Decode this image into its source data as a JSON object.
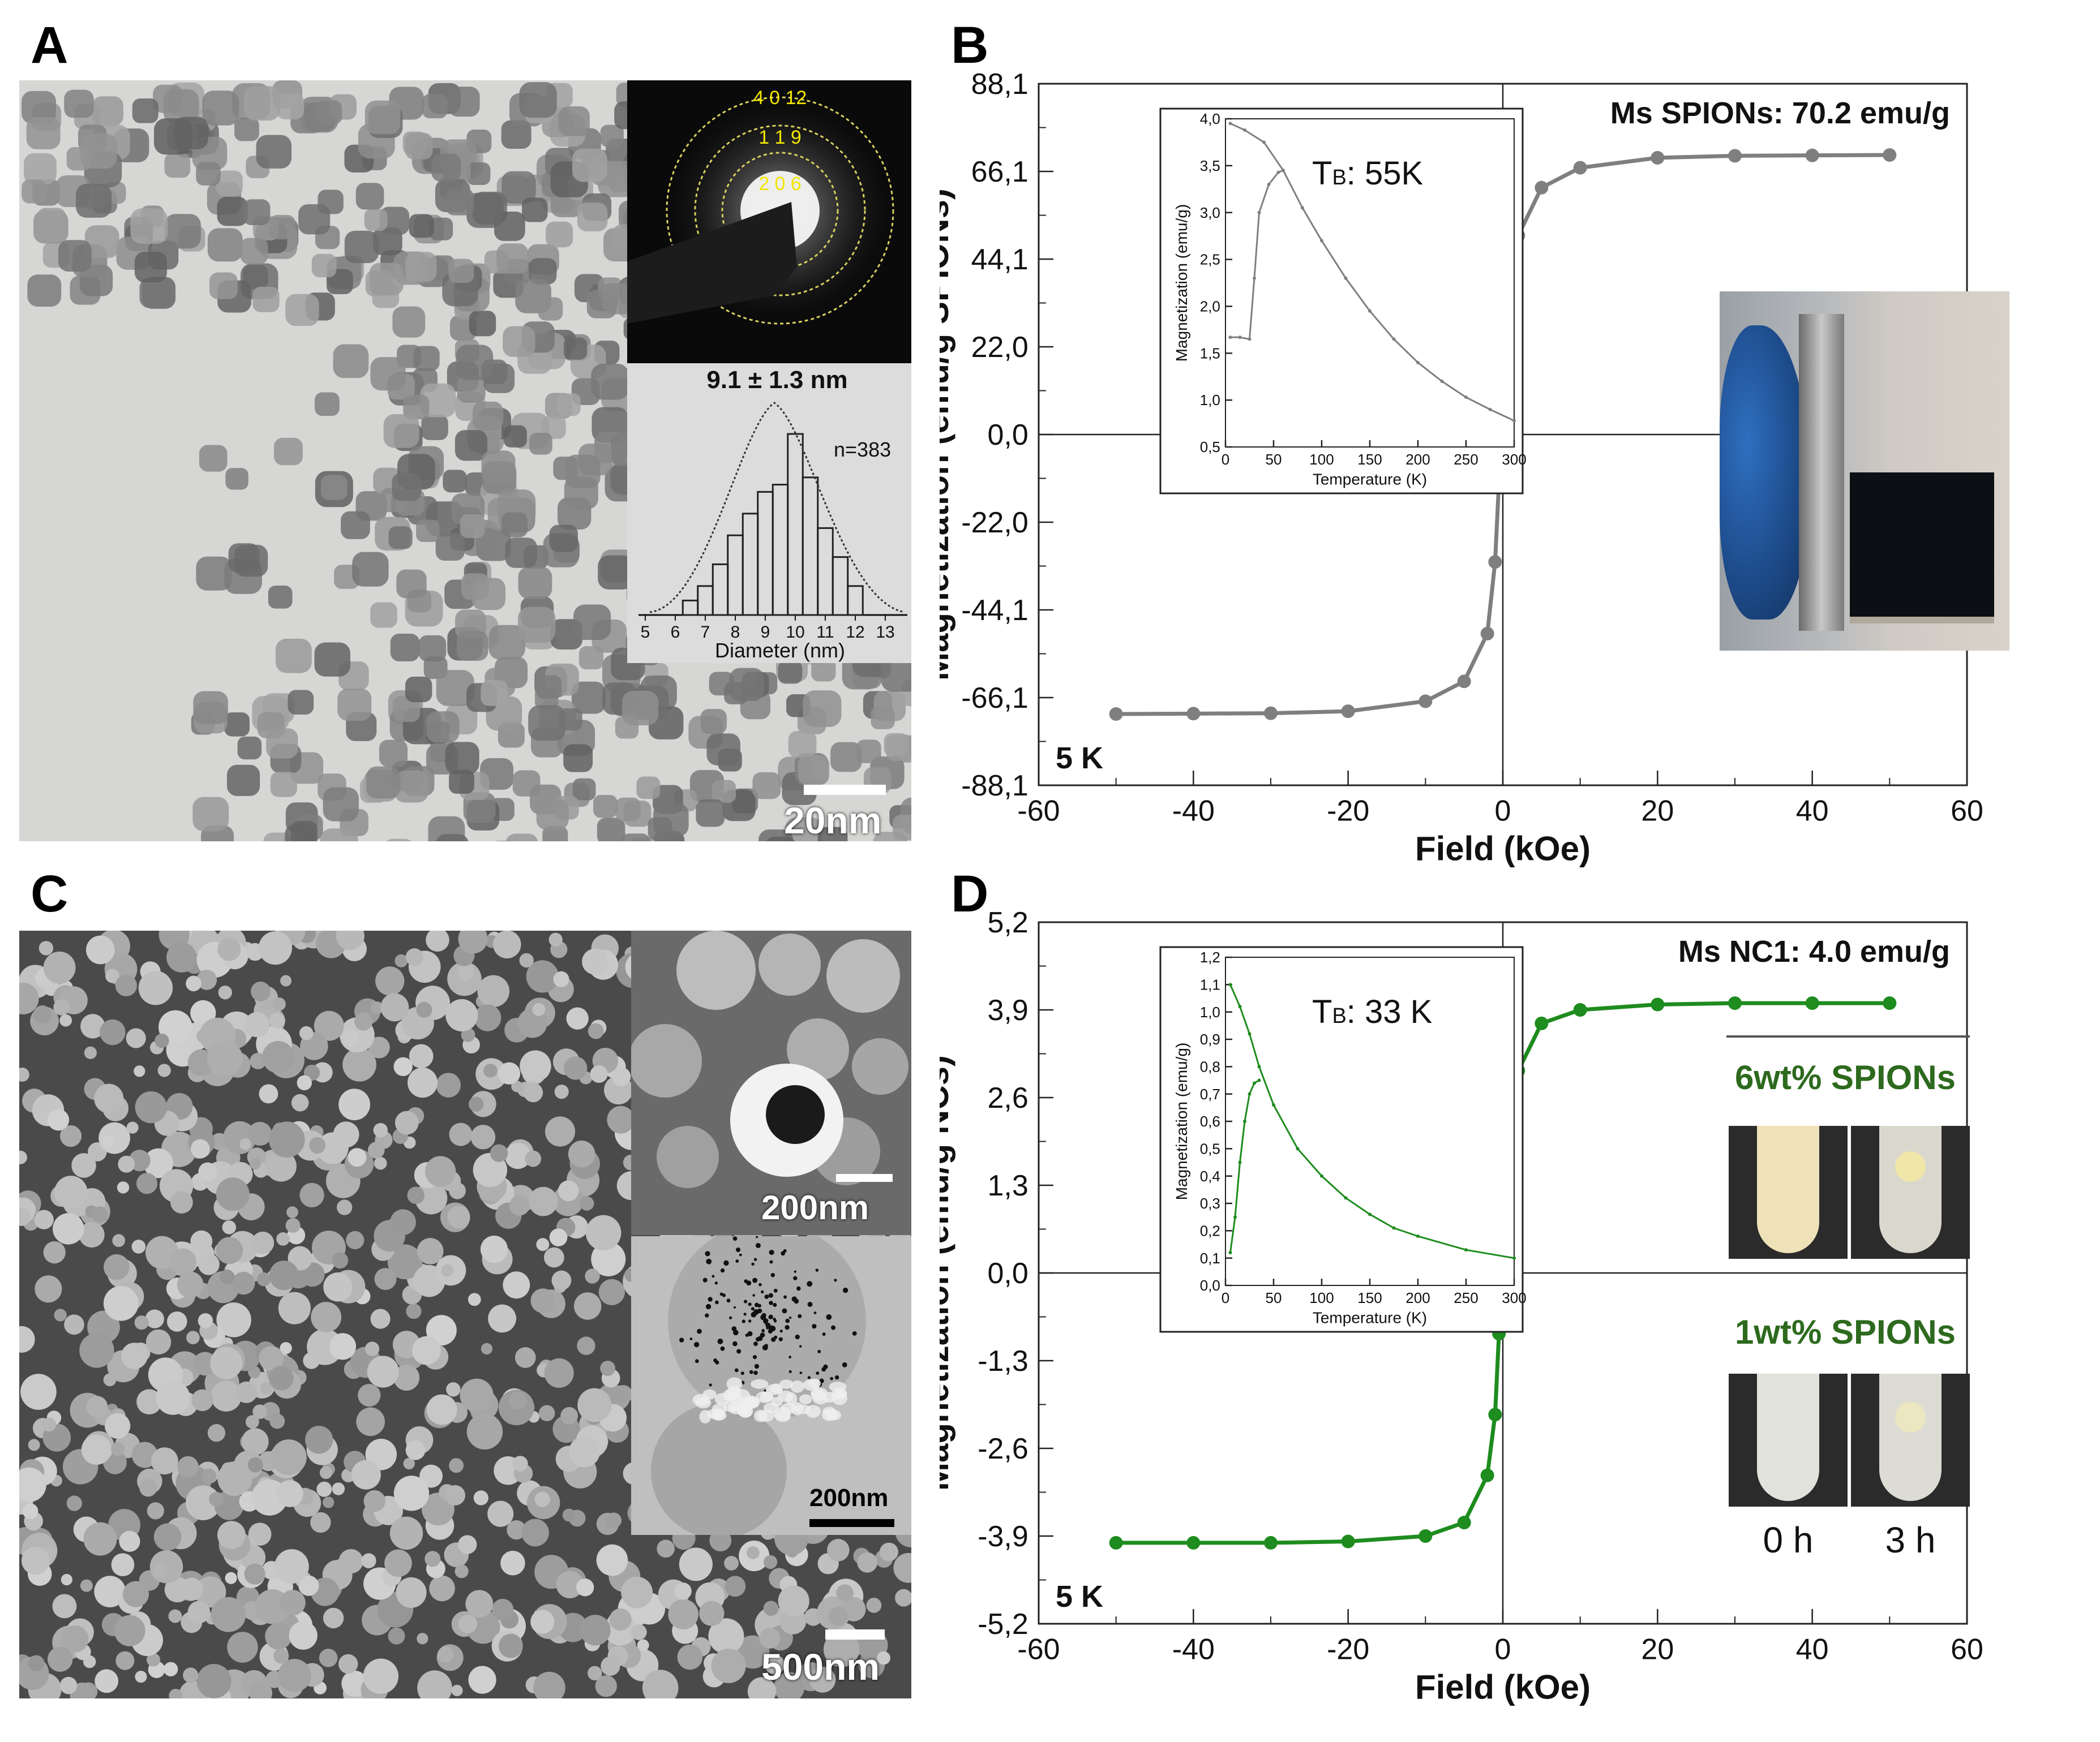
{
  "panels": {
    "a": {
      "letter": "A",
      "diffraction_rings": [
        "4 0 12",
        "1 1 9",
        "2 0 6"
      ],
      "histogram_title": "9.1 ± 1.3 nm",
      "histogram_n": "n=383",
      "histogram_xlabel": "Diameter (nm)",
      "histogram_ticks": [
        "5",
        "6",
        "7",
        "8",
        "9",
        "10",
        "11",
        "12",
        "13"
      ],
      "scalebar": "20nm"
    },
    "b": {
      "letter": "B"
    },
    "c": {
      "letter": "C",
      "scalebar_main": "500nm",
      "scalebar_inset_top": "200nm",
      "scalebar_inset_bottom": "200nm"
    },
    "d": {
      "letter": "D",
      "photo_top_label": "6wt% SPIONs",
      "photo_bottom_label": "1wt% SPIONs",
      "time_0": "0 h",
      "time_3": "3 h"
    }
  },
  "colors": {
    "spion_curve": "#7f7f7f",
    "nc_curve": "#1e8c1e",
    "nc_text": "#2d6a1e",
    "diffraction_label": "#f2e600"
  },
  "chart_data": [
    {
      "id": "b-main",
      "type": "line",
      "title": "",
      "xlabel": "Field (kOe)",
      "ylabel": "Magnetization (emu/g SPIONs)",
      "xlim": [
        -60,
        60
      ],
      "ylim": [
        -88.1,
        88.1
      ],
      "xticks": [
        "-60",
        "-40",
        "-20",
        "0",
        "20",
        "40",
        "60"
      ],
      "yticks": [
        "-88,1",
        "-66,1",
        "-44,1",
        "-22,0",
        "0,0",
        "22,0",
        "44,1",
        "66,1",
        "88,1"
      ],
      "annotations": [
        "Ms SPIONs: 70.2 emu/g",
        "5 K"
      ],
      "grid": false,
      "series": [
        {
          "x": [
            -50,
            -40,
            -30,
            -20,
            -10,
            -5,
            -2,
            -1,
            -0.5,
            0,
            0.5,
            1,
            2,
            5,
            10,
            20,
            30,
            40,
            50
          ],
          "y": [
            -70.2,
            -70.1,
            -70.0,
            -69.5,
            -67,
            -62,
            -50,
            -32,
            -12,
            0,
            12,
            32,
            50,
            62,
            67,
            69.5,
            70.0,
            70.1,
            70.2
          ]
        }
      ]
    },
    {
      "id": "b-inset",
      "type": "line",
      "xlabel": "Temperature (K)",
      "ylabel": "Magnetization (emu/g)",
      "xlim": [
        0,
        300
      ],
      "ylim": [
        0.5,
        4.0
      ],
      "xticks": [
        "0",
        "50",
        "100",
        "150",
        "200",
        "250",
        "300"
      ],
      "yticks": [
        "0,5",
        "1,0",
        "1,5",
        "2,0",
        "2,5",
        "3,0",
        "3,5",
        "4,0"
      ],
      "annotation_T": "T",
      "annotation_B": "B",
      "annotation_value": ": 55K",
      "series": [
        {
          "name_id": "fc",
          "x": [
            5,
            20,
            40,
            60,
            80,
            100,
            125,
            150,
            175,
            200,
            225,
            250,
            275,
            300
          ],
          "y": [
            3.95,
            3.88,
            3.75,
            3.45,
            3.05,
            2.7,
            2.3,
            1.95,
            1.65,
            1.4,
            1.2,
            1.03,
            0.9,
            0.78
          ]
        },
        {
          "name_id": "zfc",
          "x": [
            5,
            15,
            25,
            30,
            35,
            45,
            55,
            60
          ],
          "y": [
            1.67,
            1.67,
            1.65,
            2.3,
            3.0,
            3.3,
            3.43,
            3.45
          ]
        }
      ]
    },
    {
      "id": "d-main",
      "type": "line",
      "title": "",
      "xlabel": "Field (kOe)",
      "ylabel": "Magnetization (emu/g NCs)",
      "xlim": [
        -60,
        60
      ],
      "ylim": [
        -5.2,
        5.2
      ],
      "xticks": [
        "-60",
        "-40",
        "-20",
        "0",
        "20",
        "40",
        "60"
      ],
      "yticks": [
        "-5,2",
        "-3,9",
        "-2,6",
        "-1,3",
        "0,0",
        "1,3",
        "2,6",
        "3,9",
        "5,2"
      ],
      "annotations": [
        "Ms NC1: 4.0 emu/g",
        "5 K"
      ],
      "grid": false,
      "series": [
        {
          "x": [
            -50,
            -40,
            -30,
            -20,
            -10,
            -5,
            -2,
            -1,
            -0.5,
            0,
            0.5,
            1,
            2,
            5,
            10,
            20,
            30,
            40,
            50
          ],
          "y": [
            -4.0,
            -4.0,
            -4.0,
            -3.98,
            -3.9,
            -3.7,
            -3.0,
            -2.1,
            -0.9,
            0,
            0.9,
            2.1,
            3.0,
            3.7,
            3.9,
            3.98,
            4.0,
            4.0,
            4.0
          ]
        }
      ]
    },
    {
      "id": "d-inset",
      "type": "line",
      "xlabel": "Temperature (K)",
      "ylabel": "Magnetization (emu/g)",
      "xlim": [
        0,
        300
      ],
      "ylim": [
        0.0,
        1.2
      ],
      "xticks": [
        "0",
        "50",
        "100",
        "150",
        "200",
        "250",
        "300"
      ],
      "yticks": [
        "0,0",
        "0,1",
        "0,2",
        "0,3",
        "0,4",
        "0,5",
        "0,6",
        "0,7",
        "0,8",
        "0,9",
        "1,0",
        "1,1",
        "1,2"
      ],
      "annotation_T": "T",
      "annotation_B": "B",
      "annotation_value": ": 33 K",
      "series": [
        {
          "name_id": "fc",
          "x": [
            5,
            15,
            25,
            35,
            50,
            75,
            100,
            125,
            150,
            175,
            200,
            250,
            300
          ],
          "y": [
            1.1,
            1.02,
            0.92,
            0.8,
            0.66,
            0.5,
            0.4,
            0.32,
            0.26,
            0.21,
            0.18,
            0.13,
            0.1
          ]
        },
        {
          "name_id": "zfc",
          "x": [
            5,
            10,
            15,
            20,
            25,
            30,
            35
          ],
          "y": [
            0.12,
            0.25,
            0.45,
            0.6,
            0.7,
            0.74,
            0.75
          ]
        }
      ]
    },
    {
      "id": "a-histogram",
      "type": "bar",
      "xlabel": "Diameter (nm)",
      "categories": [
        "6.5",
        "7",
        "7.5",
        "8",
        "8.5",
        "9",
        "9.5",
        "10",
        "10.5",
        "11",
        "11.5",
        "12"
      ],
      "values": [
        2,
        4,
        7,
        11,
        14,
        17,
        18,
        25,
        19,
        12,
        8,
        4
      ]
    }
  ]
}
